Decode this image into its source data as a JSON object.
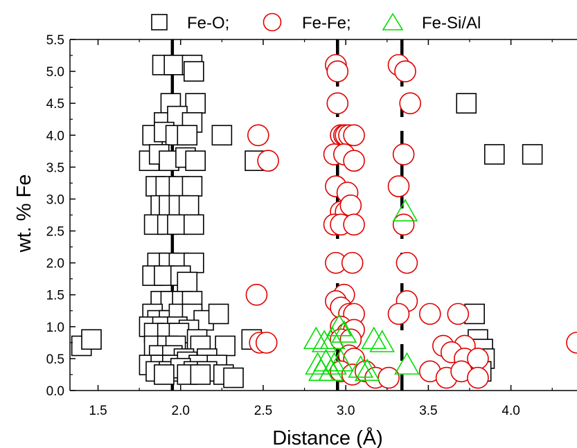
{
  "chart_data": {
    "type": "scatter",
    "title": "",
    "xlabel": "Distance (Å)",
    "ylabel": "wt. % Fe",
    "xlim": [
      1.33,
      4.4
    ],
    "ylim": [
      0.0,
      5.5
    ],
    "xticks": [
      "1.5",
      "2.0",
      "2.5",
      "3.0",
      "3.5",
      "4.0"
    ],
    "xtick_values": [
      1.5,
      2.0,
      2.5,
      3.0,
      3.5,
      4.0
    ],
    "yticks": [
      "0.0",
      "0.5",
      "1.0",
      "1.5",
      "2.0",
      "2.5",
      "3.0",
      "3.5",
      "4.0",
      "4.5",
      "5.0",
      "5.5"
    ],
    "ytick_values": [
      0.0,
      0.5,
      1.0,
      1.5,
      2.0,
      2.5,
      3.0,
      3.5,
      4.0,
      4.5,
      5.0,
      5.5
    ],
    "grid": false,
    "legend_position": "top-center",
    "legend_labels": [
      "Fe-O;",
      "Fe-Fe;",
      "Fe-Si/Al"
    ],
    "series": [
      {
        "name": "Fe-O;",
        "marker": "square",
        "color": "#000000",
        "points": [
          [
            1.4,
            0.7
          ],
          [
            1.46,
            0.8
          ],
          [
            1.89,
            5.1
          ],
          [
            1.96,
            5.1
          ],
          [
            2.07,
            5.1
          ],
          [
            2.08,
            5.0
          ],
          [
            1.94,
            4.5
          ],
          [
            2.09,
            4.5
          ],
          [
            1.9,
            4.2
          ],
          [
            1.98,
            4.3
          ],
          [
            2.07,
            4.2
          ],
          [
            1.83,
            4.0
          ],
          [
            1.9,
            4.05
          ],
          [
            1.97,
            4.0
          ],
          [
            2.04,
            4.0
          ],
          [
            2.25,
            4.0
          ],
          [
            1.81,
            3.6
          ],
          [
            1.87,
            3.7
          ],
          [
            1.93,
            3.6
          ],
          [
            2.03,
            3.65
          ],
          [
            2.09,
            3.6
          ],
          [
            1.85,
            3.2
          ],
          [
            1.91,
            3.2
          ],
          [
            1.99,
            3.2
          ],
          [
            2.07,
            3.2
          ],
          [
            1.88,
            2.9
          ],
          [
            1.93,
            2.9
          ],
          [
            1.99,
            2.9
          ],
          [
            2.05,
            2.9
          ],
          [
            1.84,
            2.6
          ],
          [
            1.92,
            2.6
          ],
          [
            1.98,
            2.6
          ],
          [
            2.08,
            2.6
          ],
          [
            1.86,
            2.0
          ],
          [
            1.93,
            2.0
          ],
          [
            1.99,
            2.0
          ],
          [
            2.08,
            2.0
          ],
          [
            1.83,
            1.8
          ],
          [
            1.9,
            1.8
          ],
          [
            2.0,
            1.8
          ],
          [
            2.04,
            1.7
          ],
          [
            1.88,
            1.4
          ],
          [
            1.94,
            1.4
          ],
          [
            2.01,
            1.4
          ],
          [
            2.07,
            1.4
          ],
          [
            1.83,
            1.2
          ],
          [
            1.86,
            1.1
          ],
          [
            1.93,
            1.1
          ],
          [
            1.99,
            1.2
          ],
          [
            2.07,
            1.2
          ],
          [
            2.14,
            1.1
          ],
          [
            2.23,
            1.2
          ],
          [
            1.81,
            1.0
          ],
          [
            1.89,
            1.0
          ],
          [
            1.98,
            1.0
          ],
          [
            2.05,
            0.95
          ],
          [
            1.84,
            0.9
          ],
          [
            1.92,
            0.9
          ],
          [
            1.99,
            0.9
          ],
          [
            2.1,
            0.8
          ],
          [
            2.27,
            0.7
          ],
          [
            2.43,
            0.8
          ],
          [
            1.84,
            0.7
          ],
          [
            1.92,
            0.7
          ],
          [
            1.97,
            0.7
          ],
          [
            2.12,
            0.7
          ],
          [
            1.87,
            0.55
          ],
          [
            1.95,
            0.55
          ],
          [
            2.02,
            0.5
          ],
          [
            2.16,
            0.5
          ],
          [
            1.81,
            0.4
          ],
          [
            1.88,
            0.4
          ],
          [
            1.95,
            0.4
          ],
          [
            2.04,
            0.45
          ],
          [
            2.11,
            0.4
          ],
          [
            2.22,
            0.4
          ],
          [
            1.85,
            0.3
          ],
          [
            1.93,
            0.3
          ],
          [
            2.0,
            0.35
          ],
          [
            2.08,
            0.3
          ],
          [
            2.16,
            0.3
          ],
          [
            2.26,
            0.25
          ],
          [
            1.9,
            0.25
          ],
          [
            2.04,
            0.25
          ],
          [
            2.12,
            0.25
          ],
          [
            2.32,
            0.2
          ],
          [
            2.45,
            3.6
          ],
          [
            3.73,
            4.5
          ],
          [
            3.9,
            3.7
          ],
          [
            4.13,
            3.7
          ],
          [
            3.78,
            1.2
          ],
          [
            3.8,
            0.8
          ],
          [
            3.83,
            0.65
          ],
          [
            3.84,
            0.5
          ],
          [
            3.82,
            0.3
          ]
        ]
      },
      {
        "name": "Fe-Fe;",
        "marker": "circle",
        "color": "#e00000",
        "points": [
          [
            2.94,
            5.1
          ],
          [
            2.95,
            5.0
          ],
          [
            3.32,
            5.1
          ],
          [
            3.36,
            5.0
          ],
          [
            2.95,
            4.5
          ],
          [
            3.39,
            4.5
          ],
          [
            2.47,
            4.0
          ],
          [
            2.97,
            4.0
          ],
          [
            2.99,
            4.0
          ],
          [
            3.0,
            4.0
          ],
          [
            3.02,
            4.0
          ],
          [
            3.05,
            4.0
          ],
          [
            2.93,
            3.7
          ],
          [
            2.99,
            3.7
          ],
          [
            3.05,
            3.6
          ],
          [
            2.53,
            3.6
          ],
          [
            3.35,
            3.7
          ],
          [
            2.94,
            3.2
          ],
          [
            3.01,
            3.1
          ],
          [
            3.32,
            3.2
          ],
          [
            2.97,
            2.8
          ],
          [
            3.0,
            2.8
          ],
          [
            3.03,
            2.9
          ],
          [
            2.93,
            2.6
          ],
          [
            2.97,
            2.6
          ],
          [
            3.05,
            2.6
          ],
          [
            3.35,
            2.6
          ],
          [
            2.94,
            2.0
          ],
          [
            3.04,
            2.0
          ],
          [
            3.37,
            2.0
          ],
          [
            2.46,
            1.5
          ],
          [
            2.99,
            1.5
          ],
          [
            2.94,
            1.4
          ],
          [
            3.37,
            1.4
          ],
          [
            2.97,
            1.3
          ],
          [
            3.02,
            1.2
          ],
          [
            3.05,
            1.2
          ],
          [
            3.32,
            1.2
          ],
          [
            3.51,
            1.2
          ],
          [
            3.68,
            1.2
          ],
          [
            2.97,
            1.0
          ],
          [
            3.01,
            0.9
          ],
          [
            3.05,
            0.95
          ],
          [
            2.48,
            0.75
          ],
          [
            2.52,
            0.75
          ],
          [
            2.97,
            0.8
          ],
          [
            3.03,
            0.8
          ],
          [
            4.4,
            0.75
          ],
          [
            3.02,
            0.55
          ],
          [
            3.05,
            0.5
          ],
          [
            3.59,
            0.7
          ],
          [
            3.72,
            0.7
          ],
          [
            3.64,
            0.6
          ],
          [
            3.72,
            0.5
          ],
          [
            3.8,
            0.5
          ],
          [
            2.97,
            0.3
          ],
          [
            3.04,
            0.25
          ],
          [
            3.12,
            0.3
          ],
          [
            3.18,
            0.2
          ],
          [
            3.26,
            0.2
          ],
          [
            3.51,
            0.3
          ],
          [
            3.61,
            0.2
          ],
          [
            3.7,
            0.3
          ],
          [
            3.8,
            0.2
          ]
        ]
      },
      {
        "name": "Fe-Si/Al",
        "marker": "triangle",
        "color": "#00dd00",
        "points": [
          [
            2.82,
            0.8
          ],
          [
            2.87,
            0.75
          ],
          [
            2.92,
            0.8
          ],
          [
            2.96,
            1.0
          ],
          [
            2.99,
            0.9
          ],
          [
            3.22,
            0.75
          ],
          [
            3.17,
            0.8
          ],
          [
            2.83,
            0.4
          ],
          [
            2.88,
            0.45
          ],
          [
            2.93,
            0.4
          ],
          [
            2.97,
            0.45
          ],
          [
            2.85,
            0.3
          ],
          [
            2.91,
            0.3
          ],
          [
            3.13,
            0.3
          ],
          [
            3.09,
            0.35
          ],
          [
            3.37,
            0.4
          ],
          [
            3.36,
            2.8
          ]
        ]
      }
    ],
    "reference_lines": [
      {
        "x": 1.95,
        "style": "solid",
        "color": "#000000"
      },
      {
        "x": 2.95,
        "style": "dashed",
        "color": "#000000"
      },
      {
        "x": 3.34,
        "style": "dashed",
        "color": "#000000"
      }
    ]
  }
}
